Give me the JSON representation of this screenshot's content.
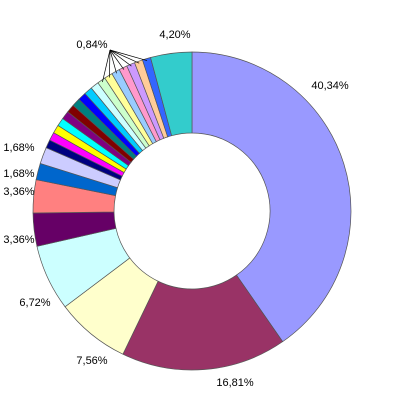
{
  "chart_data": {
    "type": "donut",
    "values": [
      40.34,
      16.81,
      7.56,
      6.72,
      3.36,
      3.36,
      1.68,
      1.68,
      0.84,
      0.84,
      0.84,
      0.84,
      0.84,
      0.84,
      0.84,
      0.84,
      0.84,
      0.84,
      0.84,
      0.84,
      0.84,
      0.84,
      0.84,
      0.84,
      0.84,
      4.2
    ],
    "value_labels": [
      "40,34%",
      "16,81%",
      "7,56%",
      "6,72%",
      "3,36%",
      "3,36%",
      "1,68%",
      "1,68%",
      null,
      null,
      null,
      null,
      null,
      null,
      null,
      null,
      null,
      null,
      null,
      null,
      null,
      null,
      null,
      null,
      "0,84%",
      "4,20%"
    ],
    "colors": [
      "#9999FF",
      "#993366",
      "#FFFFCC",
      "#CCFFFF",
      "#660066",
      "#FF8080",
      "#0066CC",
      "#CCCCFF",
      "#000080",
      "#FF00FF",
      "#FFFF00",
      "#00FFFF",
      "#800080",
      "#800000",
      "#008080",
      "#0000FF",
      "#00CCFF",
      "#CCFFFF",
      "#CCFFCC",
      "#FFFF99",
      "#99CCFF",
      "#FF99CC",
      "#CC99FF",
      "#FFCC99",
      "#3366FF",
      "#33CCCC"
    ]
  }
}
